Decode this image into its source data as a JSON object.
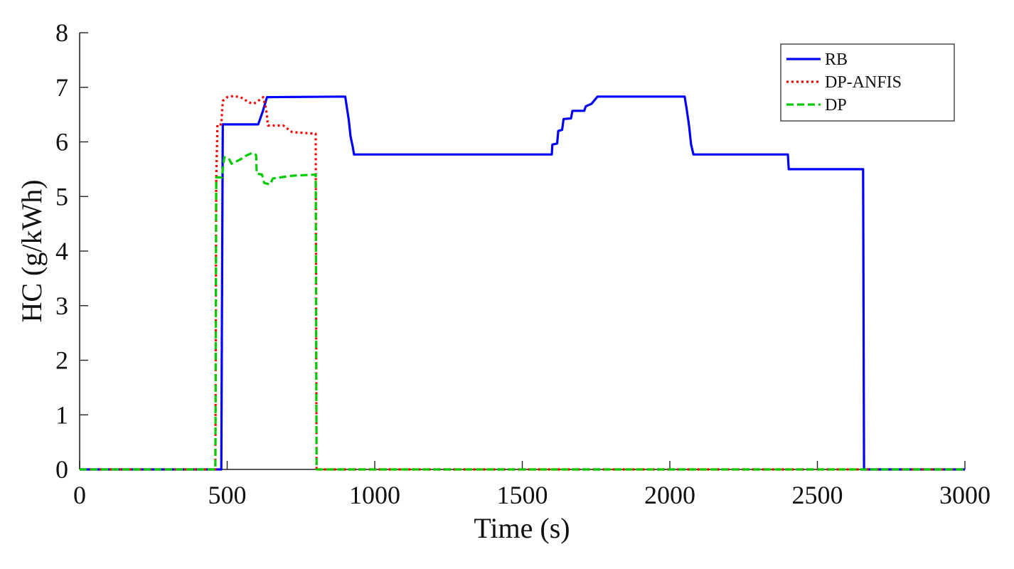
{
  "chart_data": {
    "type": "line",
    "title": "",
    "xlabel": "Time (s)",
    "ylabel": "HC (g/kWh)",
    "xlim": [
      0,
      3000
    ],
    "ylim": [
      0,
      8
    ],
    "xticks": [
      0,
      500,
      1000,
      1500,
      2000,
      2500,
      3000
    ],
    "yticks": [
      0,
      1,
      2,
      3,
      4,
      5,
      6,
      7,
      8
    ],
    "grid": false,
    "legend_position": "top-right",
    "series": [
      {
        "name": "RB",
        "color": "#0000ff",
        "style": "solid",
        "points": [
          [
            0,
            0
          ],
          [
            480,
            0
          ],
          [
            485,
            6.32
          ],
          [
            605,
            6.32
          ],
          [
            620,
            6.55
          ],
          [
            635,
            6.82
          ],
          [
            900,
            6.83
          ],
          [
            905,
            6.65
          ],
          [
            912,
            6.4
          ],
          [
            918,
            6.1
          ],
          [
            925,
            5.92
          ],
          [
            930,
            5.77
          ],
          [
            1600,
            5.77
          ],
          [
            1602,
            5.95
          ],
          [
            1618,
            5.97
          ],
          [
            1622,
            6.2
          ],
          [
            1635,
            6.22
          ],
          [
            1640,
            6.42
          ],
          [
            1665,
            6.43
          ],
          [
            1670,
            6.57
          ],
          [
            1710,
            6.57
          ],
          [
            1715,
            6.65
          ],
          [
            1735,
            6.7
          ],
          [
            1755,
            6.83
          ],
          [
            2050,
            6.83
          ],
          [
            2057,
            6.6
          ],
          [
            2065,
            6.3
          ],
          [
            2072,
            5.95
          ],
          [
            2080,
            5.77
          ],
          [
            2400,
            5.77
          ],
          [
            2403,
            5.5
          ],
          [
            2655,
            5.5
          ],
          [
            2658,
            0
          ],
          [
            3000,
            0
          ]
        ]
      },
      {
        "name": "DP-ANFIS",
        "color": "#ff0000",
        "style": "dotted",
        "points": [
          [
            0,
            0
          ],
          [
            460,
            0
          ],
          [
            463,
            5.3
          ],
          [
            467,
            6.32
          ],
          [
            480,
            6.32
          ],
          [
            485,
            6.75
          ],
          [
            500,
            6.82
          ],
          [
            520,
            6.84
          ],
          [
            545,
            6.82
          ],
          [
            575,
            6.72
          ],
          [
            590,
            6.7
          ],
          [
            605,
            6.75
          ],
          [
            622,
            6.82
          ],
          [
            632,
            6.6
          ],
          [
            638,
            6.3
          ],
          [
            690,
            6.3
          ],
          [
            720,
            6.18
          ],
          [
            800,
            6.15
          ],
          [
            803,
            0
          ],
          [
            3000,
            0
          ]
        ]
      },
      {
        "name": "DP",
        "color": "#00cc00",
        "style": "dashed",
        "points": [
          [
            0,
            0
          ],
          [
            460,
            0
          ],
          [
            463,
            5.35
          ],
          [
            482,
            5.35
          ],
          [
            490,
            5.72
          ],
          [
            505,
            5.7
          ],
          [
            515,
            5.6
          ],
          [
            545,
            5.68
          ],
          [
            565,
            5.75
          ],
          [
            585,
            5.8
          ],
          [
            598,
            5.76
          ],
          [
            600,
            5.42
          ],
          [
            618,
            5.4
          ],
          [
            625,
            5.25
          ],
          [
            645,
            5.22
          ],
          [
            655,
            5.33
          ],
          [
            720,
            5.38
          ],
          [
            800,
            5.4
          ],
          [
            803,
            0
          ],
          [
            3000,
            0
          ]
        ]
      }
    ]
  }
}
